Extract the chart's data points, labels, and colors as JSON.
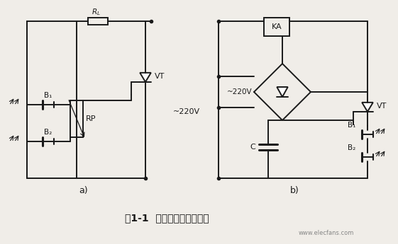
{
  "title": "图1-1  无电源光控开关电路",
  "watermark": "www.elecfans.com",
  "bg_color": "#f0ede8",
  "line_color": "#1a1a1a",
  "watermark_color": "#888888",
  "label_a": "a)",
  "label_b": "b)",
  "fig_width": 5.61,
  "fig_height": 3.45
}
